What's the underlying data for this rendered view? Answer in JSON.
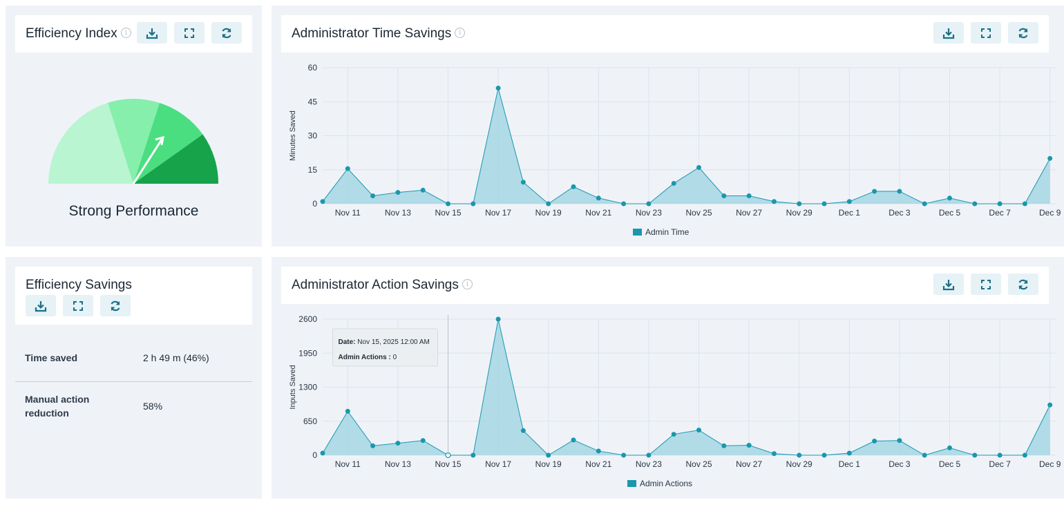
{
  "efficiency_index": {
    "title": "Efficiency Index",
    "info_icon": "info-icon",
    "gauge_label": "Strong Performance",
    "segment_colors": [
      "#b9f5d0",
      "#86efac",
      "#4ade80",
      "#16a34a"
    ],
    "needle_color": "#ffffff"
  },
  "efficiency_savings": {
    "title": "Efficiency Savings",
    "rows": [
      {
        "label": "Time saved",
        "value": "2 h 49 m (46%)"
      },
      {
        "label": "Manual action reduction",
        "value": "58%"
      }
    ]
  },
  "toolbar_icons": [
    "download-icon",
    "fullscreen-icon",
    "refresh-icon"
  ],
  "colors": {
    "accent": "#1a97ad",
    "area_fill": "#a8d8e4",
    "button_bg": "#e6f2f6",
    "panel_bg": "#eff3f8"
  },
  "time_chart": {
    "title": "Administrator Time Savings",
    "info_icon": "info-icon",
    "ylabel": "Minutes Saved",
    "legend": "Admin Time",
    "yticks": [
      "0",
      "15",
      "30",
      "45",
      "60"
    ],
    "xticks": [
      "Nov 11",
      "Nov 13",
      "Nov 15",
      "Nov 17",
      "Nov 19",
      "Nov 21",
      "Nov 23",
      "Nov 25",
      "Nov 27",
      "Nov 29",
      "Dec 1",
      "Dec 3",
      "Dec 5",
      "Dec 7",
      "Dec 9"
    ]
  },
  "action_chart": {
    "title": "Administrator Action Savings",
    "info_icon": "info-icon",
    "ylabel": "Inputs Saved",
    "legend": "Admin Actions",
    "yticks": [
      "0",
      "650",
      "1300",
      "1950",
      "2600"
    ],
    "xticks": [
      "Nov 11",
      "Nov 13",
      "Nov 15",
      "Nov 17",
      "Nov 19",
      "Nov 21",
      "Nov 23",
      "Nov 25",
      "Nov 27",
      "Nov 29",
      "Dec 1",
      "Dec 3",
      "Dec 5",
      "Dec 7",
      "Dec 9"
    ],
    "tooltip": {
      "date_label": "Date:",
      "date_value": "Nov 15, 2025 12:00 AM",
      "series_label": "Admin Actions :",
      "series_value": "0"
    }
  },
  "chart_data": [
    {
      "type": "area",
      "title": "Administrator Time Savings",
      "xlabel": "",
      "ylabel": "Minutes Saved",
      "x": [
        "Nov 10",
        "Nov 11",
        "Nov 12",
        "Nov 13",
        "Nov 14",
        "Nov 15",
        "Nov 16",
        "Nov 17",
        "Nov 18",
        "Nov 19",
        "Nov 20",
        "Nov 21",
        "Nov 22",
        "Nov 23",
        "Nov 24",
        "Nov 25",
        "Nov 26",
        "Nov 27",
        "Nov 28",
        "Nov 29",
        "Nov 30",
        "Dec 1",
        "Dec 2",
        "Dec 3",
        "Dec 4",
        "Dec 5",
        "Dec 6",
        "Dec 7",
        "Dec 8",
        "Dec 9"
      ],
      "series": [
        {
          "name": "Admin Time",
          "values": [
            1,
            15.5,
            3.5,
            5,
            6,
            0,
            0,
            51,
            9.5,
            0,
            7.5,
            2.5,
            0,
            0,
            9,
            16,
            3.5,
            3.5,
            1,
            0,
            0,
            1,
            5.5,
            5.5,
            0,
            2.5,
            0,
            0,
            0,
            20
          ]
        }
      ],
      "ylim": [
        0,
        60
      ],
      "grid": true,
      "legend": "bottom"
    },
    {
      "type": "area",
      "title": "Administrator Action Savings",
      "xlabel": "",
      "ylabel": "Inputs Saved",
      "x": [
        "Nov 10",
        "Nov 11",
        "Nov 12",
        "Nov 13",
        "Nov 14",
        "Nov 15",
        "Nov 16",
        "Nov 17",
        "Nov 18",
        "Nov 19",
        "Nov 20",
        "Nov 21",
        "Nov 22",
        "Nov 23",
        "Nov 24",
        "Nov 25",
        "Nov 26",
        "Nov 27",
        "Nov 28",
        "Nov 29",
        "Nov 30",
        "Dec 1",
        "Dec 2",
        "Dec 3",
        "Dec 4",
        "Dec 5",
        "Dec 6",
        "Dec 7",
        "Dec 8",
        "Dec 9"
      ],
      "series": [
        {
          "name": "Admin Actions",
          "values": [
            40,
            840,
            180,
            230,
            280,
            0,
            0,
            2600,
            470,
            0,
            290,
            80,
            0,
            0,
            400,
            480,
            180,
            190,
            30,
            0,
            0,
            40,
            270,
            280,
            0,
            140,
            0,
            0,
            0,
            960
          ]
        }
      ],
      "ylim": [
        0,
        2600
      ],
      "grid": true,
      "legend": "bottom"
    }
  ]
}
